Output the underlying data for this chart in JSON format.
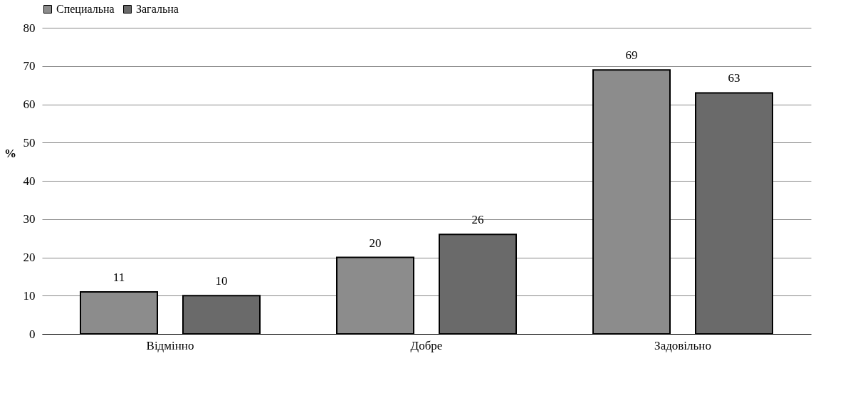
{
  "chart_data": {
    "type": "bar",
    "ylabel": "%",
    "categories": [
      "Відмінно",
      "Добре",
      "Задовільно"
    ],
    "series": [
      {
        "name": "Специальна",
        "color": "#8c8c8c",
        "values": [
          11,
          20,
          69
        ]
      },
      {
        "name": "Загальна",
        "color": "#6a6a6a",
        "values": [
          10,
          26,
          63
        ]
      }
    ],
    "ylim": [
      0,
      80
    ],
    "yticks": [
      0,
      10,
      20,
      30,
      40,
      50,
      60,
      70,
      80
    ],
    "grid": "y",
    "legend": "top",
    "data_labels": true
  }
}
